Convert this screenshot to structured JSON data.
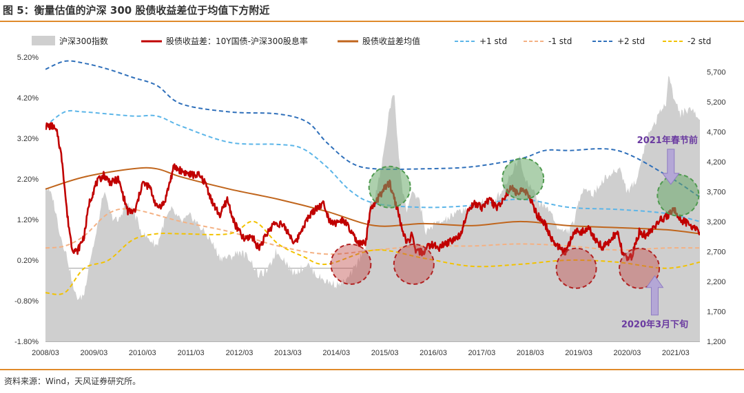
{
  "figure_title": "图 5：衡量估值的沪深 300 股债收益差位于均值下方附近",
  "source_note": "资料来源：Wind，天风证券研究所。",
  "colors": {
    "index_area": "#cfcfcf",
    "spread": "#c00000",
    "mean": "#c0651c",
    "plus1": "#5bb5e8",
    "minus1": "#f4b183",
    "plus2": "#2e6fba",
    "minus2": "#f2c200",
    "annotation": "#6a3aa0",
    "green_circle": "#6aaa6a",
    "red_circle": "#c0504d",
    "arrow": "#b4a7d6",
    "rule": "#e08a2a"
  },
  "chart_data": {
    "type": "line",
    "x_ticks": [
      "2008/03",
      "2009/03",
      "2010/03",
      "2011/03",
      "2012/03",
      "2013/03",
      "2014/03",
      "2015/03",
      "2016/03",
      "2017/03",
      "2018/03",
      "2019/03",
      "2020/03",
      "2021/03"
    ],
    "x_range": [
      2008.2,
      2021.7
    ],
    "y_left": {
      "ticks": [
        "5.20%",
        "4.20%",
        "3.20%",
        "2.20%",
        "1.20%",
        "0.20%",
        "-0.80%",
        "-1.80%"
      ],
      "range": [
        -1.8,
        5.2
      ]
    },
    "y_right": {
      "ticks": [
        "5,700",
        "5,200",
        "4,700",
        "4,200",
        "3,700",
        "3,200",
        "2,700",
        "2,200",
        "1,700",
        "1,200"
      ],
      "range": [
        1200,
        5950
      ]
    },
    "legend": [
      {
        "key": "index",
        "label": "沪深300指数",
        "style": "area"
      },
      {
        "key": "spread",
        "label": "股债收益差：10Y国债-沪深300股息率",
        "style": "line"
      },
      {
        "key": "mean",
        "label": "股债收益差均值",
        "style": "line"
      },
      {
        "key": "plus1",
        "label": "+1 std",
        "style": "dash"
      },
      {
        "key": "minus1",
        "label": "-1 std",
        "style": "dash"
      },
      {
        "key": "plus2",
        "label": "+2 std",
        "style": "dash"
      },
      {
        "key": "minus2",
        "label": "-2 std",
        "style": "dash"
      }
    ],
    "series": [
      {
        "name": "沪深300指数",
        "axis": "right",
        "style": "area",
        "x": [
          2008.2,
          2008.35,
          2008.5,
          2008.65,
          2008.8,
          2008.9,
          2009.0,
          2009.1,
          2009.25,
          2009.4,
          2009.55,
          2009.7,
          2009.85,
          2010.0,
          2010.2,
          2010.35,
          2010.5,
          2010.65,
          2010.8,
          2011.0,
          2011.2,
          2011.4,
          2011.6,
          2011.8,
          2012.0,
          2012.2,
          2012.4,
          2012.6,
          2012.8,
          2012.95,
          2013.1,
          2013.3,
          2013.45,
          2013.6,
          2013.8,
          2014.0,
          2014.2,
          2014.4,
          2014.6,
          2014.8,
          2014.9,
          2015.0,
          2015.15,
          2015.3,
          2015.4,
          2015.45,
          2015.55,
          2015.65,
          2015.75,
          2015.9,
          2016.05,
          2016.2,
          2016.4,
          2016.6,
          2016.8,
          2017.0,
          2017.2,
          2017.4,
          2017.6,
          2017.8,
          2018.0,
          2018.05,
          2018.2,
          2018.4,
          2018.6,
          2018.8,
          2019.0,
          2019.1,
          2019.3,
          2019.5,
          2019.7,
          2019.9,
          2020.05,
          2020.2,
          2020.4,
          2020.6,
          2020.8,
          2021.0,
          2021.05,
          2021.15,
          2021.3,
          2021.5,
          2021.7
        ],
        "values": [
          3800,
          3600,
          3000,
          2600,
          2000,
          1900,
          2000,
          2500,
          3000,
          3700,
          3300,
          3200,
          3500,
          3400,
          3000,
          2900,
          2800,
          3200,
          3400,
          3200,
          3300,
          3100,
          2900,
          2600,
          2600,
          2700,
          2600,
          2300,
          2400,
          2700,
          2600,
          2350,
          2400,
          2500,
          2300,
          2200,
          2150,
          2200,
          2450,
          2800,
          3500,
          3600,
          4200,
          5100,
          5350,
          4700,
          3800,
          3400,
          3650,
          3600,
          3000,
          3150,
          3200,
          3300,
          3400,
          3450,
          3550,
          3500,
          3700,
          4000,
          4300,
          4000,
          3800,
          3500,
          3400,
          3050,
          3050,
          3200,
          3800,
          3650,
          3900,
          4000,
          4100,
          3700,
          3900,
          4600,
          4900,
          5200,
          5700,
          5300,
          5000,
          5100,
          4900
        ]
      },
      {
        "name": "股债收益差：10Y国债-沪深300股息率",
        "axis": "left",
        "style": "line",
        "x": [
          2008.2,
          2008.35,
          2008.45,
          2008.55,
          2008.65,
          2008.75,
          2008.85,
          2009.0,
          2009.1,
          2009.25,
          2009.4,
          2009.55,
          2009.7,
          2009.9,
          2010.05,
          2010.2,
          2010.35,
          2010.5,
          2010.65,
          2010.85,
          2011.0,
          2011.2,
          2011.35,
          2011.5,
          2011.65,
          2011.8,
          2011.95,
          2012.1,
          2012.3,
          2012.45,
          2012.6,
          2012.75,
          2012.9,
          2013.05,
          2013.2,
          2013.35,
          2013.5,
          2013.65,
          2013.8,
          2013.95,
          2014.05,
          2014.2,
          2014.35,
          2014.5,
          2014.65,
          2014.8,
          2014.9,
          2015.0,
          2015.15,
          2015.3,
          2015.45,
          2015.55,
          2015.65,
          2015.75,
          2015.85,
          2016.0,
          2016.15,
          2016.3,
          2016.45,
          2016.6,
          2016.75,
          2016.9,
          2017.05,
          2017.2,
          2017.35,
          2017.5,
          2017.65,
          2017.8,
          2017.95,
          2018.05,
          2018.2,
          2018.35,
          2018.5,
          2018.65,
          2018.8,
          2018.95,
          2019.1,
          2019.25,
          2019.4,
          2019.55,
          2019.7,
          2019.85,
          2020.0,
          2020.1,
          2020.2,
          2020.3,
          2020.45,
          2020.6,
          2020.75,
          2020.9,
          2021.05,
          2021.15,
          2021.3,
          2021.45,
          2021.6,
          2021.7
        ],
        "values": [
          3.5,
          3.5,
          3.3,
          2.6,
          1.3,
          0.5,
          0.4,
          0.8,
          1.6,
          2.1,
          2.3,
          2.1,
          2.2,
          1.4,
          1.4,
          2.1,
          2.0,
          1.5,
          1.6,
          2.5,
          2.4,
          2.3,
          2.3,
          2.1,
          1.6,
          1.3,
          1.7,
          1.1,
          0.7,
          0.8,
          0.5,
          0.8,
          1.1,
          1.1,
          0.9,
          0.6,
          1.0,
          1.3,
          1.5,
          1.6,
          1.2,
          1.1,
          1.2,
          0.9,
          0.6,
          0.6,
          1.4,
          1.6,
          1.9,
          2.1,
          1.5,
          1.0,
          0.6,
          0.8,
          0.4,
          0.4,
          0.6,
          0.5,
          0.6,
          0.7,
          0.8,
          1.4,
          1.6,
          1.5,
          1.7,
          1.5,
          1.7,
          2.0,
          1.8,
          2.0,
          1.7,
          1.3,
          1.1,
          0.7,
          0.5,
          0.4,
          0.9,
          0.9,
          1.0,
          0.7,
          0.5,
          0.7,
          0.9,
          0.4,
          0.2,
          0.3,
          0.9,
          0.8,
          1.0,
          1.2,
          1.3,
          1.5,
          1.2,
          1.1,
          1.0,
          0.9
        ]
      },
      {
        "name": "股债收益差均值",
        "axis": "left",
        "style": "line",
        "x": [
          2008.2,
          2009.0,
          2010.0,
          2010.5,
          2011.0,
          2012.0,
          2013.0,
          2014.0,
          2015.0,
          2016.0,
          2017.0,
          2018.0,
          2019.0,
          2020.0,
          2021.0,
          2021.7
        ],
        "values": [
          1.95,
          2.25,
          2.45,
          2.45,
          2.25,
          1.95,
          1.7,
          1.4,
          1.05,
          1.1,
          1.05,
          1.15,
          1.05,
          1.0,
          0.95,
          0.85
        ]
      },
      {
        "name": "+1 std",
        "axis": "left",
        "style": "dash",
        "x": [
          2008.2,
          2008.6,
          2009.0,
          2010.0,
          2010.5,
          2011.0,
          2012.0,
          2013.0,
          2013.5,
          2014.0,
          2014.5,
          2015.0,
          2016.0,
          2017.0,
          2018.0,
          2019.0,
          2020.0,
          2021.0,
          2021.7
        ],
        "values": [
          3.5,
          3.85,
          3.85,
          3.75,
          3.75,
          3.5,
          3.1,
          3.05,
          2.95,
          2.5,
          1.9,
          1.6,
          1.5,
          1.55,
          1.7,
          1.5,
          1.45,
          1.35,
          1.15
        ]
      },
      {
        "name": "-1 std",
        "axis": "left",
        "style": "dash",
        "x": [
          2008.2,
          2008.6,
          2009.0,
          2009.5,
          2010.0,
          2011.0,
          2012.0,
          2013.0,
          2014.0,
          2015.0,
          2016.0,
          2017.0,
          2018.0,
          2019.0,
          2020.0,
          2021.0,
          2021.7
        ],
        "values": [
          0.5,
          0.55,
          0.8,
          1.35,
          1.45,
          1.15,
          0.9,
          0.55,
          0.35,
          0.45,
          0.55,
          0.55,
          0.6,
          0.55,
          0.45,
          0.5,
          0.5
        ]
      },
      {
        "name": "+2 std",
        "axis": "left",
        "style": "dash",
        "x": [
          2008.2,
          2008.6,
          2009.0,
          2009.5,
          2010.0,
          2010.5,
          2011.0,
          2012.0,
          2013.0,
          2013.6,
          2014.0,
          2014.5,
          2015.0,
          2016.0,
          2017.0,
          2018.0,
          2018.5,
          2019.0,
          2020.0,
          2021.0,
          2021.7
        ],
        "values": [
          4.9,
          5.1,
          5.05,
          4.9,
          4.7,
          4.5,
          4.05,
          3.85,
          3.8,
          3.6,
          3.1,
          2.6,
          2.45,
          2.45,
          2.5,
          2.7,
          2.9,
          2.9,
          2.9,
          2.3,
          1.75
        ]
      },
      {
        "name": "-2 std",
        "axis": "left",
        "style": "dash",
        "x": [
          2008.2,
          2008.6,
          2009.0,
          2009.5,
          2010.0,
          2010.5,
          2011.0,
          2012.0,
          2012.5,
          2013.0,
          2013.5,
          2014.0,
          2015.0,
          2016.0,
          2017.0,
          2018.0,
          2019.0,
          2020.0,
          2021.0,
          2021.7
        ],
        "values": [
          -0.6,
          -0.6,
          0.0,
          0.2,
          0.7,
          0.85,
          0.85,
          0.85,
          1.15,
          0.6,
          0.3,
          0.1,
          0.45,
          0.25,
          0.05,
          0.1,
          0.2,
          0.15,
          0.0,
          0.15
        ]
      }
    ],
    "annotations": [
      {
        "text": "2021年春节前",
        "target_x": 2021.1,
        "target_y": 2.0
      },
      {
        "text": "2020年3月下旬",
        "target_x": 2020.2,
        "target_y": -0.1
      }
    ],
    "highlight_circles": {
      "green": [
        {
          "x": 2015.3,
          "y": 2.0
        },
        {
          "x": 2018.05,
          "y": 2.2
        },
        {
          "x": 2021.25,
          "y": 1.8
        }
      ],
      "red": [
        {
          "x": 2014.5,
          "y": 0.1
        },
        {
          "x": 2015.8,
          "y": 0.1
        },
        {
          "x": 2019.15,
          "y": 0.0
        },
        {
          "x": 2020.45,
          "y": 0.0
        }
      ]
    }
  }
}
